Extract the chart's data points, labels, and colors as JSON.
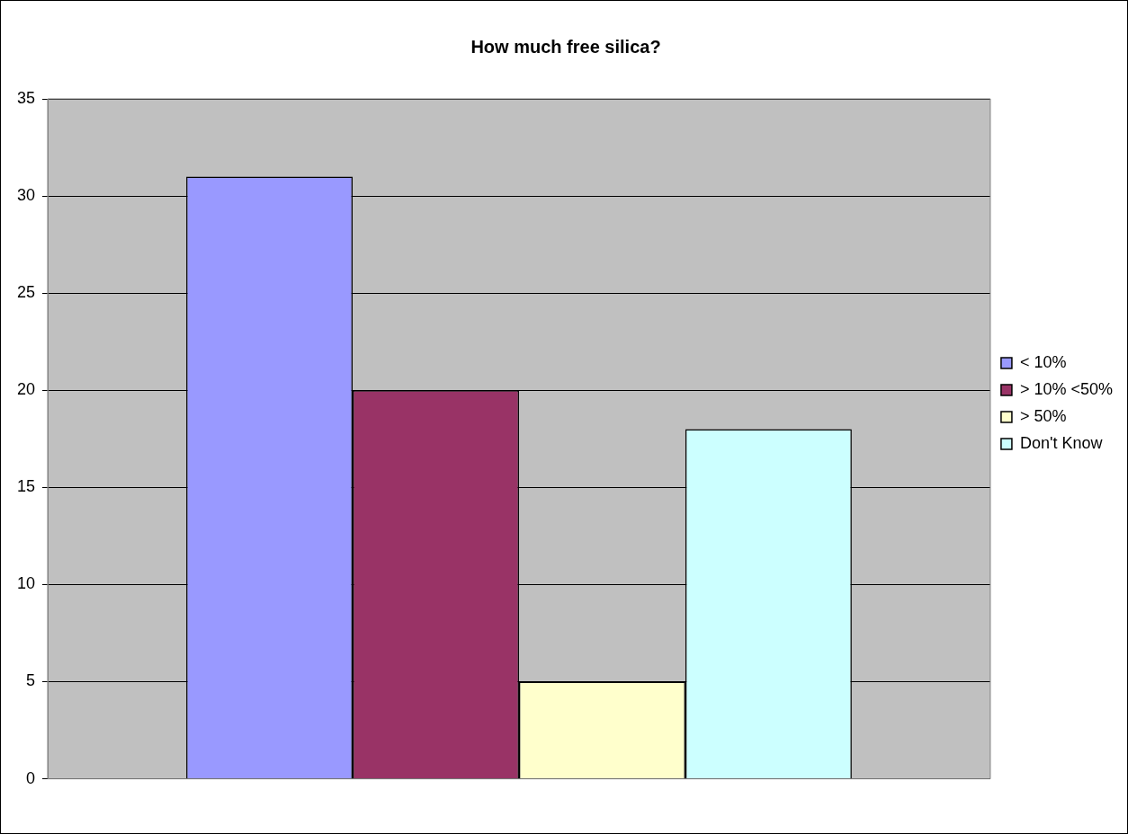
{
  "chart_data": {
    "type": "bar",
    "title": "How much free silica?",
    "categories": [
      null
    ],
    "series": [
      {
        "name": "< 10%",
        "color": "#9999ff",
        "values": [
          31
        ]
      },
      {
        "name": "> 10% <50%",
        "color": "#993366",
        "values": [
          20
        ]
      },
      {
        "name": "> 50%",
        "color": "#ffffcc",
        "values": [
          5
        ]
      },
      {
        "name": "Don't Know",
        "color": "#ccffff",
        "values": [
          18
        ]
      }
    ],
    "ylim": [
      0,
      35
    ],
    "yticks": [
      0,
      5,
      10,
      15,
      20,
      25,
      30,
      35
    ],
    "grid": "y",
    "legend": "right"
  }
}
